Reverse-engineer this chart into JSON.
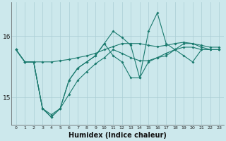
{
  "xlabel": "Humidex (Indice chaleur)",
  "bg_color": "#cce8ec",
  "grid_color": "#aacdd4",
  "line_color": "#1a7a6e",
  "x_values": [
    0,
    1,
    2,
    3,
    4,
    5,
    6,
    7,
    8,
    9,
    10,
    11,
    12,
    13,
    14,
    15,
    16,
    17,
    18,
    19,
    20,
    21,
    22,
    23
  ],
  "series": [
    [
      15.78,
      15.58,
      15.58,
      15.58,
      15.58,
      15.6,
      15.62,
      15.65,
      15.68,
      15.72,
      15.78,
      15.83,
      15.88,
      15.88,
      15.88,
      15.85,
      15.83,
      15.85,
      15.88,
      15.9,
      15.88,
      15.85,
      15.82,
      15.82
    ],
    [
      15.78,
      15.58,
      15.58,
      14.82,
      14.72,
      14.82,
      15.05,
      15.28,
      15.42,
      15.55,
      15.65,
      15.78,
      15.72,
      15.65,
      15.6,
      15.6,
      15.65,
      15.72,
      15.78,
      15.82,
      15.82,
      15.78,
      15.78,
      15.78
    ],
    [
      15.78,
      15.58,
      15.58,
      14.82,
      14.68,
      14.82,
      15.28,
      15.48,
      15.58,
      15.68,
      15.88,
      16.08,
      15.98,
      15.85,
      15.32,
      16.08,
      16.38,
      15.88,
      15.78,
      15.68,
      15.58,
      15.78,
      15.78,
      15.78
    ],
    [
      15.78,
      15.58,
      15.58,
      14.82,
      14.68,
      14.82,
      15.28,
      15.48,
      15.58,
      15.68,
      15.88,
      15.68,
      15.58,
      15.32,
      15.32,
      15.58,
      15.65,
      15.68,
      15.78,
      15.88,
      15.88,
      15.82,
      15.78,
      15.78
    ]
  ],
  "ylim": [
    14.55,
    16.55
  ],
  "yticks": [
    15,
    16
  ],
  "xlabel_fontsize": 7,
  "tick_fontsize": 6.5
}
